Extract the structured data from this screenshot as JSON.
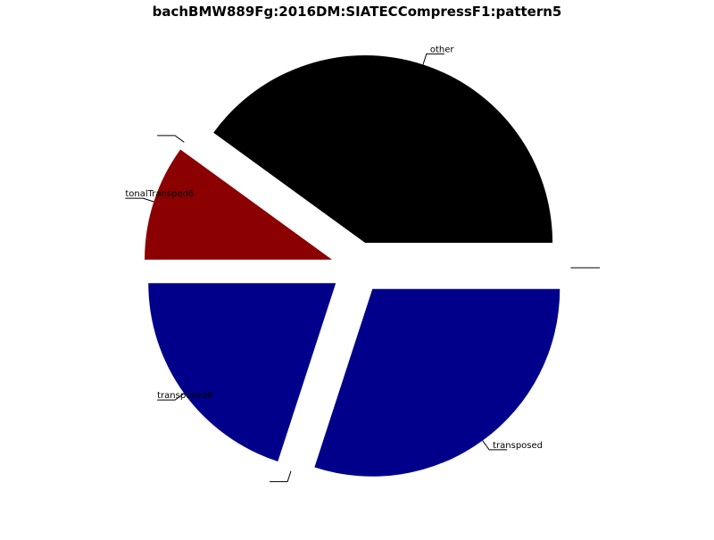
{
  "chart_data": {
    "type": "pie",
    "title": "bachBMW889Fg:2016DM:SIATECCompressF1:pattern5",
    "slices": [
      {
        "label": "other",
        "value": 0.4,
        "color": "#000000"
      },
      {
        "label": "",
        "value": 0.0,
        "color": "#000000"
      },
      {
        "label": "tonalTransped6",
        "value": 0.1,
        "color": "#8b0000"
      },
      {
        "label": "transposed6",
        "value": 0.2,
        "color": "#00008b"
      },
      {
        "label": "",
        "value": 0.0,
        "color": "#00008b"
      },
      {
        "label": "transposed",
        "value": 0.3,
        "color": "#00008b"
      },
      {
        "label": "",
        "value": 0.0,
        "color": "#000000"
      }
    ],
    "legend": "none",
    "grid": false
  }
}
